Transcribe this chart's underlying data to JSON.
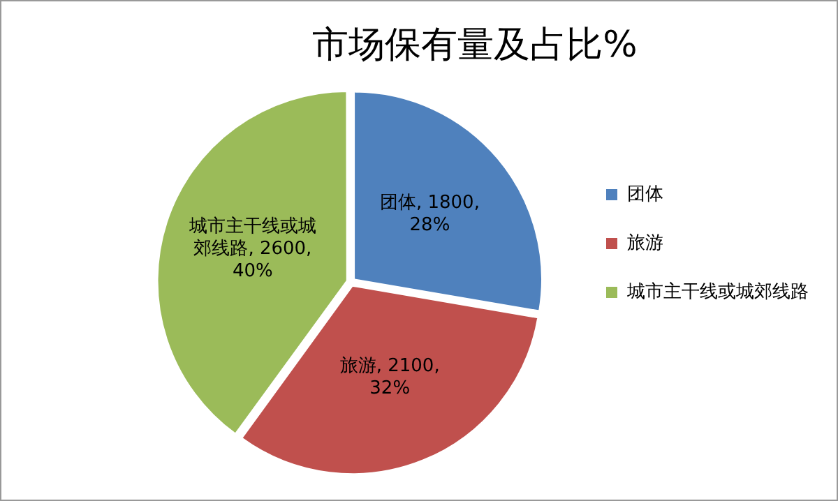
{
  "chart_data": {
    "type": "pie",
    "title": "市场保有量及占比%",
    "categories": [
      "团体",
      "旅游",
      "城市主干线或城郊线路"
    ],
    "values": [
      1800,
      2100,
      2600
    ],
    "colors": [
      "#4f81bd",
      "#c0504d",
      "#9bbb59"
    ],
    "value_labels": [
      "团体, 1800, 28%",
      "旅游, 2100, 32%",
      "城市主干线或城郊线路, 2600, 40%"
    ],
    "legend": "right"
  }
}
